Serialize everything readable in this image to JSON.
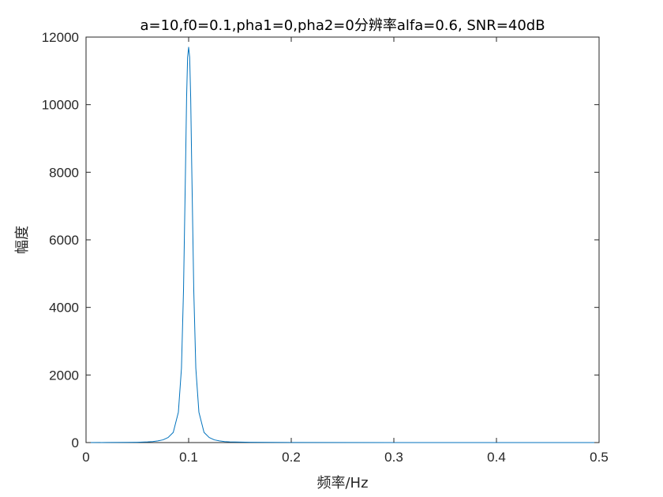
{
  "chart_data": {
    "type": "line",
    "title": "a=10,f0=0.1,pha1=0,pha2=0分辨率alfa=0.6, SNR=40dB",
    "xlabel": "频率/Hz",
    "ylabel": "幅度",
    "xlim": [
      0,
      0.5
    ],
    "ylim": [
      0,
      12000
    ],
    "x_ticks": [
      "0",
      "0.1",
      "0.2",
      "0.3",
      "0.4",
      "0.5"
    ],
    "y_ticks": [
      "0",
      "2000",
      "4000",
      "6000",
      "8000",
      "10000",
      "12000"
    ],
    "grid": false,
    "box": true,
    "colors": {
      "line": "#0072bd",
      "axes": "#262626"
    },
    "series": [
      {
        "x": [
          0,
          0.02,
          0.04,
          0.05,
          0.06,
          0.065,
          0.07,
          0.075,
          0.08,
          0.085,
          0.09,
          0.093,
          0.095,
          0.097,
          0.098,
          0.099,
          0.1,
          0.101,
          0.102,
          0.103,
          0.105,
          0.107,
          0.11,
          0.115,
          0.12,
          0.125,
          0.13,
          0.135,
          0.14,
          0.16,
          0.2,
          0.3,
          0.4,
          0.5
        ],
        "values": [
          0,
          2,
          5,
          10,
          20,
          30,
          50,
          80,
          150,
          300,
          900,
          2200,
          4500,
          8200,
          10200,
          11400,
          11700,
          11400,
          10200,
          8200,
          4500,
          2200,
          900,
          300,
          150,
          80,
          50,
          30,
          20,
          10,
          3,
          1,
          0.5,
          0
        ]
      }
    ]
  }
}
